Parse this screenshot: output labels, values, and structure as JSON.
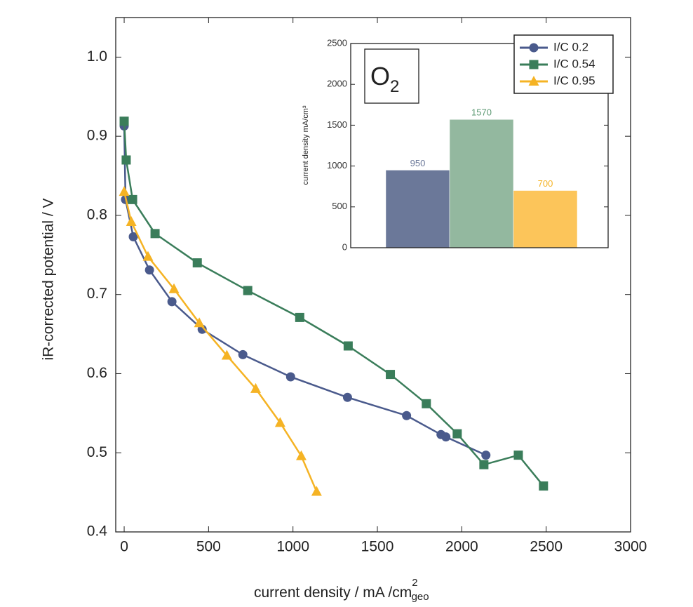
{
  "chart_data": [
    {
      "type": "line",
      "xlabel": "current density / mA /cm",
      "xlabel_sup": "2",
      "xlabel_sub": "geo",
      "ylabel": "iR-corrected potential / V",
      "xlim": [
        -50,
        3000
      ],
      "ylim": [
        0.4,
        1.05
      ],
      "xticks": [
        0,
        500,
        1000,
        1500,
        2000,
        2500,
        3000
      ],
      "yticks": [
        0.4,
        0.5,
        0.6,
        0.7,
        0.8,
        0.9,
        {
          "value": 1,
          "label": "1.0"
        }
      ],
      "legend": "upper right",
      "series": [
        {
          "name": "I/C 0.2",
          "color": "#4a5a8c",
          "marker": "circle",
          "x": [
            0,
            8,
            54,
            150,
            283,
            462,
            703,
            986,
            1323,
            1673,
            1877,
            1906,
            2143
          ],
          "values": [
            0.913,
            0.82,
            0.773,
            0.731,
            0.691,
            0.656,
            0.624,
            0.596,
            0.57,
            0.547,
            0.523,
            0.52,
            0.497
          ]
        },
        {
          "name": "I/C 0.54",
          "color": "#3a7d5a",
          "marker": "square",
          "x": [
            0,
            12,
            50,
            183,
            433,
            732,
            1040,
            1327,
            1577,
            1790,
            1973,
            2131,
            2335,
            2484
          ],
          "values": [
            0.919,
            0.87,
            0.82,
            0.777,
            0.74,
            0.705,
            0.671,
            0.635,
            0.599,
            0.562,
            0.524,
            0.485,
            0.497,
            0.458
          ]
        },
        {
          "name": "I/C 0.95",
          "color": "#f5b324",
          "marker": "triangle",
          "x": [
            0,
            42,
            141,
            295,
            445,
            608,
            779,
            924,
            1049,
            1140
          ],
          "values": [
            0.83,
            0.792,
            0.748,
            0.707,
            0.664,
            0.623,
            0.581,
            0.538,
            0.496,
            0.451
          ]
        }
      ]
    },
    {
      "type": "bar",
      "ylabel": "current density mA/cm³",
      "annotation": "O",
      "annotation_sub": "2",
      "categories": [
        null,
        null,
        null
      ],
      "values": [
        950,
        1570,
        700
      ],
      "colors": [
        "#6b7899",
        "#93b89f",
        "#fcc55a"
      ],
      "label_colors": [
        "#6b7899",
        "#5e9a74",
        "#f5b324"
      ],
      "ylim": [
        0,
        2500
      ],
      "yticks": [
        0,
        500,
        1000,
        1500,
        2000,
        2500
      ]
    }
  ]
}
